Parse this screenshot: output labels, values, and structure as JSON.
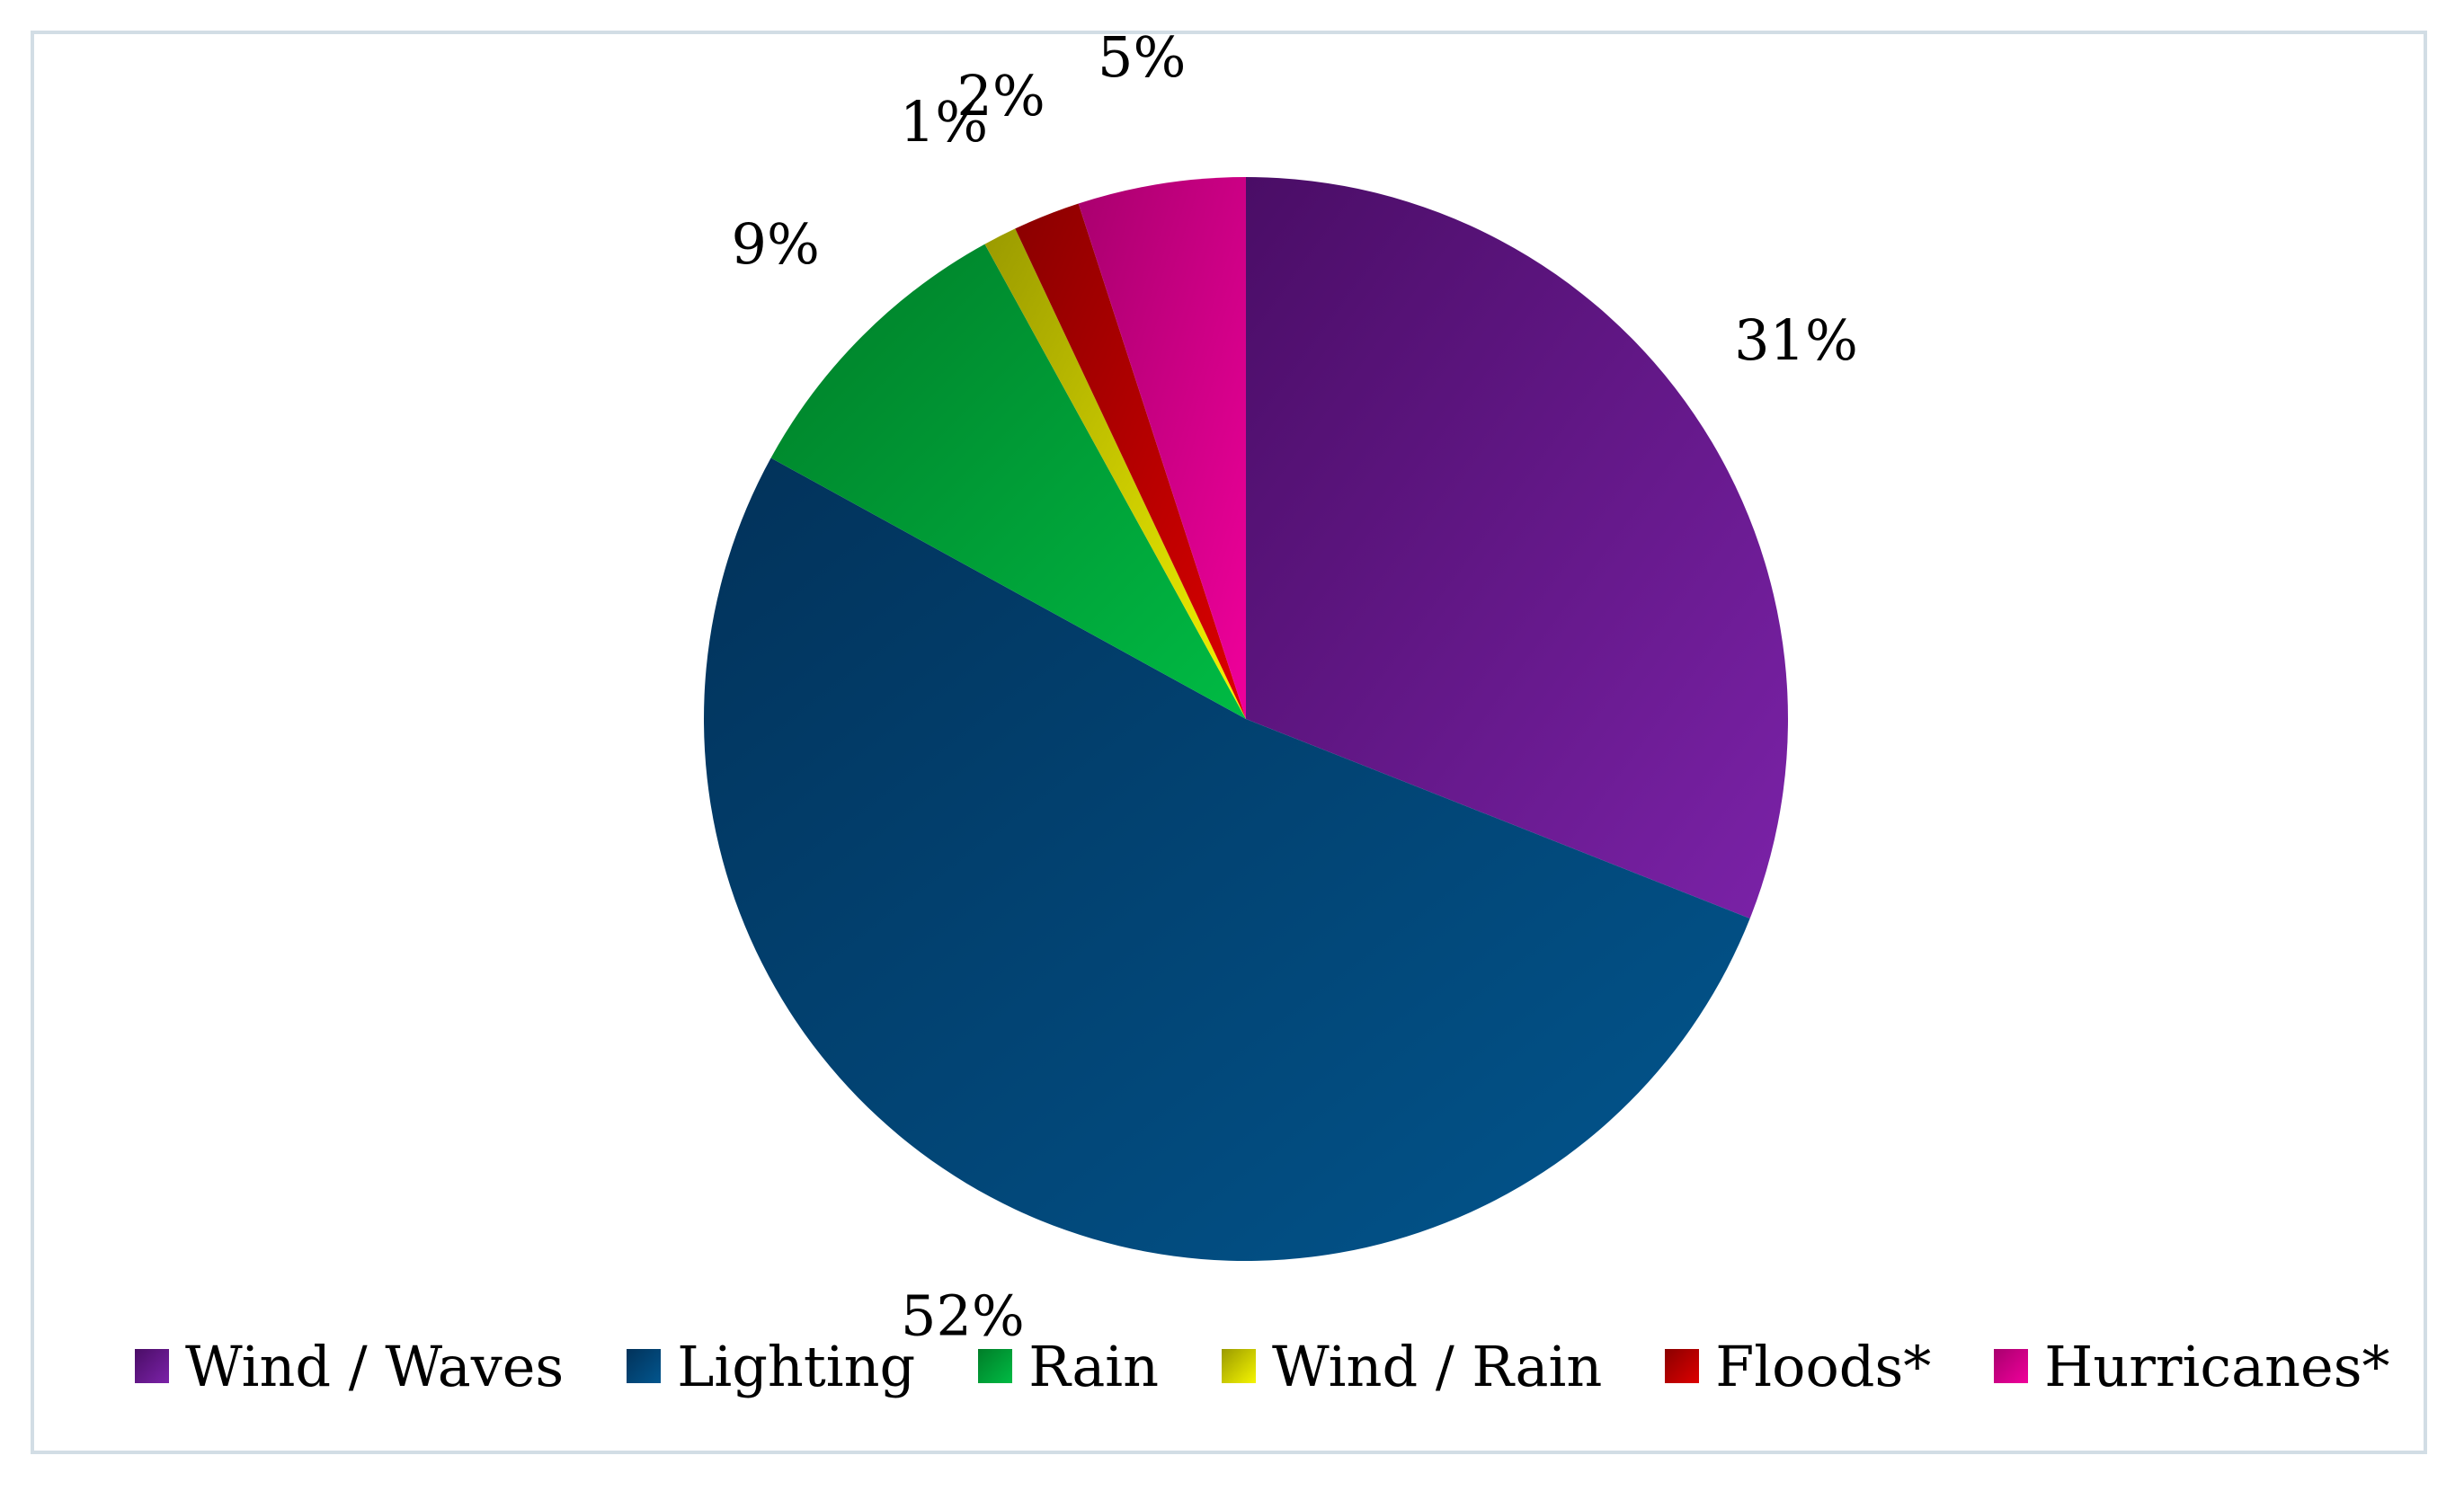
{
  "chart_data": {
    "type": "pie",
    "start_angle_deg": 0,
    "direction": "clockwise",
    "categories": [
      "Wind / Waves",
      "Lighting",
      "Rain",
      "Wind / Rain",
      "Floods*",
      "Hurricanes*"
    ],
    "values": [
      31,
      52,
      9,
      1,
      2,
      5
    ],
    "data_labels": [
      "31%",
      "52%",
      "9%",
      "1%",
      "2%",
      "5%"
    ],
    "colors": {
      "Wind / Waves": {
        "dark": "#4a0d66",
        "light": "#7b22a8"
      },
      "Lighting": {
        "dark": "#02325a",
        "light": "#02568e"
      },
      "Rain": {
        "dark": "#007d28",
        "light": "#00bb44"
      },
      "Wind / Rain": {
        "dark": "#9a9a00",
        "light": "#f5f500"
      },
      "Floods*": {
        "dark": "#8a0000",
        "light": "#dd0000"
      },
      "Hurricanes*": {
        "dark": "#a8006e",
        "light": "#f0009b"
      }
    },
    "legend_position": "bottom",
    "title": ""
  }
}
